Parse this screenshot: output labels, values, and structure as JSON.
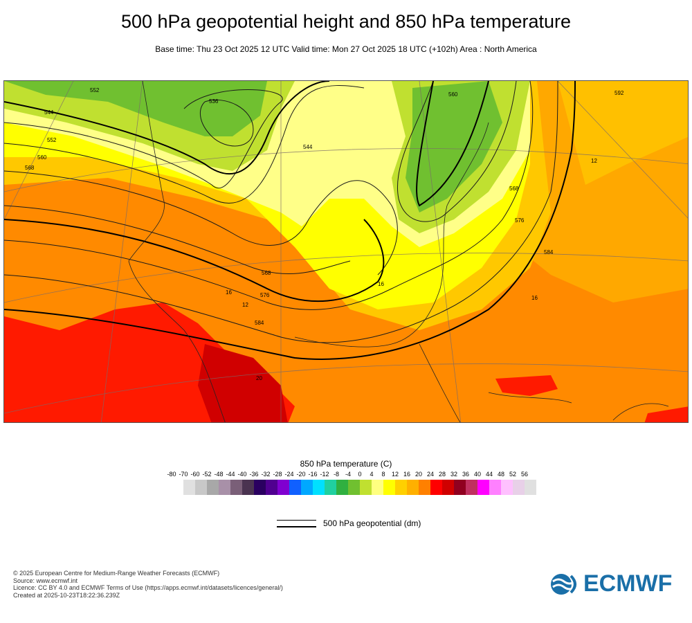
{
  "title": "500 hPa geopotential height and 850 hPa temperature",
  "subtitle": "Base time: Thu 23 Oct 2025 12 UTC Valid time: Mon 27 Oct 2025 18 UTC (+102h) Area : North America",
  "map": {
    "contour_labels": [
      "552",
      "544",
      "552",
      "560",
      "568",
      "536",
      "544",
      "560",
      "568",
      "576",
      "584",
      "568",
      "576",
      "584",
      "592",
      "12",
      "16",
      "16",
      "12",
      "20",
      "16"
    ]
  },
  "temperature_legend": {
    "title": "850 hPa temperature (C)",
    "ticks": [
      "-80",
      "-70",
      "-60",
      "-52",
      "-48",
      "-44",
      "-40",
      "-36",
      "-32",
      "-28",
      "-24",
      "-20",
      "-16",
      "-12",
      "-8",
      "-4",
      "0",
      "4",
      "8",
      "12",
      "16",
      "20",
      "24",
      "28",
      "32",
      "36",
      "40",
      "44",
      "48",
      "52",
      "56"
    ],
    "colors": [
      "#e0e0e0",
      "#c8c8c8",
      "#a8a8a8",
      "#a890a8",
      "#7a5f78",
      "#4a3350",
      "#2a0060",
      "#500090",
      "#8000d0",
      "#1060ff",
      "#00a8ff",
      "#00e0ff",
      "#20d0a0",
      "#30b040",
      "#70c030",
      "#c0e030",
      "#ffff80",
      "#ffff00",
      "#ffd000",
      "#ffb000",
      "#ff8000",
      "#ff0000",
      "#d00000",
      "#900020",
      "#c03060",
      "#ff00ff",
      "#ff80ff",
      "#ffc0ff",
      "#e8d0e8",
      "#e0e0e0"
    ]
  },
  "geopotential_legend": {
    "label": "500 hPa geopotential (dm)"
  },
  "footer": {
    "line1": "© 2025 European Centre for Medium-Range Weather Forecasts (ECMWF)",
    "line2": "Source: www.ecmwf.int",
    "line3": "Licence: CC BY 4.0 and ECMWF Terms of Use (https://apps.ecmwf.int/datasets/licences/general/)",
    "line4": "Created at 2025-10-23T18:22:36.239Z"
  },
  "logo": {
    "text": "ECMWF",
    "color": "#1a6fa8"
  }
}
